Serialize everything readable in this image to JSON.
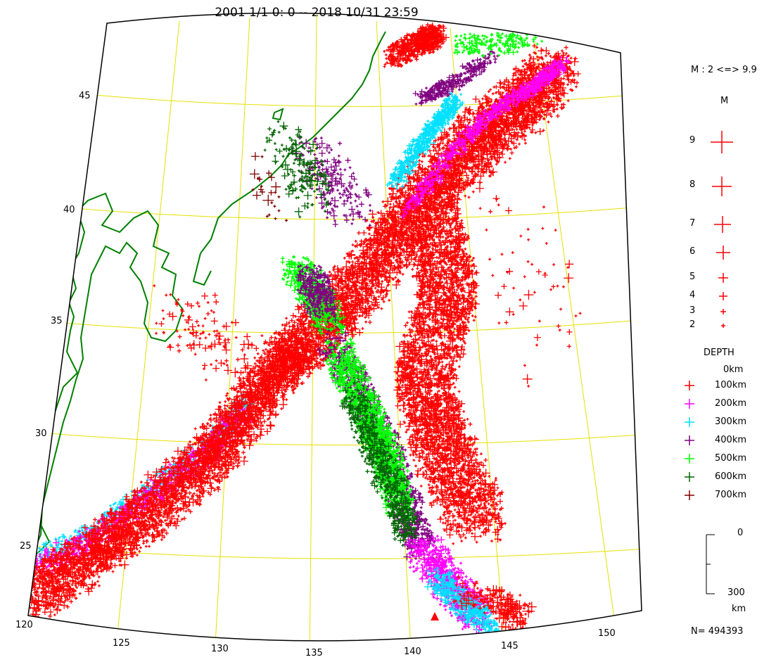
{
  "title": "2001 1/1 0: 0 -- 2018 10/31 23:59",
  "map": {
    "lat_labels": [
      "45",
      "40",
      "35",
      "30",
      "25"
    ],
    "lon_labels": [
      "120",
      "125",
      "130",
      "135",
      "140",
      "145",
      "150"
    ],
    "colors": {
      "frame": "#000000",
      "graticule": "#e8e000",
      "coast": "#008000"
    }
  },
  "legend": {
    "magnitude_range": "M : 2 <=> 9.9",
    "magnitude_header": "M",
    "magnitudes": [
      "9",
      "8",
      "7",
      "6",
      "5",
      "4",
      "3",
      "2"
    ],
    "magnitude_color": "#ff0000",
    "depth_header": "DEPTH",
    "depth_top": "0km",
    "depths": [
      {
        "label": "100km",
        "color": "#ff0000"
      },
      {
        "label": "200km",
        "color": "#ff00ff"
      },
      {
        "label": "300km",
        "color": "#00e0ff"
      },
      {
        "label": "400km",
        "color": "#800080"
      },
      {
        "label": "500km",
        "color": "#00ff00"
      },
      {
        "label": "600km",
        "color": "#006400"
      },
      {
        "label": "700km",
        "color": "#800000"
      }
    ],
    "scale_top": "0",
    "scale_bottom": "300",
    "scale_unit": "km",
    "count": "N= 494393"
  }
}
